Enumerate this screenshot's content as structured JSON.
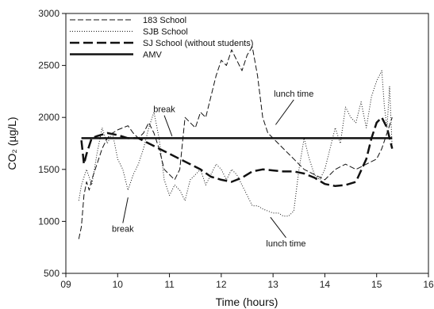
{
  "chart_data": {
    "type": "line",
    "xlabel": "Time (hours)",
    "ylabel": "CO₂ (µg/L)",
    "xlim": [
      9,
      16
    ],
    "ylim": [
      500,
      3000
    ],
    "xticks": [
      9,
      10,
      11,
      12,
      13,
      14,
      15,
      16
    ],
    "yticks": [
      500,
      1000,
      1500,
      2000,
      2500,
      3000
    ],
    "xtick_labels": [
      "09",
      "10",
      "11",
      "12",
      "13",
      "14",
      "15",
      "16"
    ],
    "ytick_labels": [
      "500",
      "1000",
      "1500",
      "2000",
      "2500",
      "3000"
    ],
    "grid": false,
    "legend": "top-left",
    "series": [
      {
        "name": "183 School",
        "style": "dashed",
        "points": [
          [
            9.25,
            830
          ],
          [
            9.3,
            950
          ],
          [
            9.35,
            1250
          ],
          [
            9.4,
            1380
          ],
          [
            9.45,
            1300
          ],
          [
            9.5,
            1400
          ],
          [
            9.6,
            1550
          ],
          [
            9.7,
            1700
          ],
          [
            9.8,
            1800
          ],
          [
            9.9,
            1850
          ],
          [
            10.0,
            1880
          ],
          [
            10.1,
            1900
          ],
          [
            10.2,
            1920
          ],
          [
            10.3,
            1850
          ],
          [
            10.4,
            1800
          ],
          [
            10.5,
            1850
          ],
          [
            10.6,
            1950
          ],
          [
            10.7,
            1850
          ],
          [
            10.8,
            1700
          ],
          [
            10.9,
            1500
          ],
          [
            11.0,
            1450
          ],
          [
            11.1,
            1400
          ],
          [
            11.2,
            1500
          ],
          [
            11.3,
            2000
          ],
          [
            11.4,
            1950
          ],
          [
            11.5,
            1900
          ],
          [
            11.6,
            2050
          ],
          [
            11.7,
            2000
          ],
          [
            11.8,
            2200
          ],
          [
            11.9,
            2400
          ],
          [
            12.0,
            2550
          ],
          [
            12.1,
            2500
          ],
          [
            12.2,
            2650
          ],
          [
            12.3,
            2550
          ],
          [
            12.4,
            2450
          ],
          [
            12.5,
            2600
          ],
          [
            12.6,
            2680
          ],
          [
            12.7,
            2400
          ],
          [
            12.8,
            2000
          ],
          [
            12.9,
            1850
          ],
          [
            13.0,
            1800
          ],
          [
            13.2,
            1700
          ],
          [
            13.4,
            1600
          ],
          [
            13.6,
            1500
          ],
          [
            13.8,
            1450
          ],
          [
            14.0,
            1400
          ],
          [
            14.2,
            1500
          ],
          [
            14.4,
            1550
          ],
          [
            14.6,
            1500
          ],
          [
            14.8,
            1550
          ],
          [
            15.0,
            1600
          ],
          [
            15.1,
            1700
          ],
          [
            15.2,
            1850
          ],
          [
            15.3,
            2000
          ]
        ]
      },
      {
        "name": "SJB School",
        "style": "dotted",
        "points": [
          [
            9.25,
            1200
          ],
          [
            9.3,
            1350
          ],
          [
            9.4,
            1500
          ],
          [
            9.5,
            1350
          ],
          [
            9.6,
            1650
          ],
          [
            9.7,
            1900
          ],
          [
            9.8,
            1750
          ],
          [
            9.9,
            1850
          ],
          [
            10.0,
            1600
          ],
          [
            10.1,
            1500
          ],
          [
            10.2,
            1300
          ],
          [
            10.3,
            1450
          ],
          [
            10.4,
            1550
          ],
          [
            10.5,
            1700
          ],
          [
            10.6,
            1900
          ],
          [
            10.7,
            2050
          ],
          [
            10.8,
            1800
          ],
          [
            10.9,
            1400
          ],
          [
            11.0,
            1250
          ],
          [
            11.1,
            1350
          ],
          [
            11.2,
            1300
          ],
          [
            11.3,
            1200
          ],
          [
            11.4,
            1400
          ],
          [
            11.5,
            1450
          ],
          [
            11.6,
            1500
          ],
          [
            11.7,
            1350
          ],
          [
            11.8,
            1450
          ],
          [
            11.9,
            1550
          ],
          [
            12.0,
            1500
          ],
          [
            12.1,
            1400
          ],
          [
            12.2,
            1500
          ],
          [
            12.3,
            1450
          ],
          [
            12.4,
            1350
          ],
          [
            12.5,
            1250
          ],
          [
            12.6,
            1150
          ],
          [
            12.7,
            1150
          ],
          [
            12.8,
            1120
          ],
          [
            12.9,
            1100
          ],
          [
            13.0,
            1080
          ],
          [
            13.1,
            1080
          ],
          [
            13.2,
            1050
          ],
          [
            13.3,
            1050
          ],
          [
            13.4,
            1100
          ],
          [
            13.5,
            1500
          ],
          [
            13.6,
            1800
          ],
          [
            13.7,
            1600
          ],
          [
            13.8,
            1450
          ],
          [
            13.9,
            1400
          ],
          [
            14.0,
            1500
          ],
          [
            14.1,
            1700
          ],
          [
            14.2,
            1900
          ],
          [
            14.3,
            1750
          ],
          [
            14.4,
            2100
          ],
          [
            14.5,
            2000
          ],
          [
            14.6,
            1950
          ],
          [
            14.7,
            2150
          ],
          [
            14.8,
            1900
          ],
          [
            14.9,
            2200
          ],
          [
            15.0,
            2350
          ],
          [
            15.1,
            2450
          ],
          [
            15.15,
            2100
          ],
          [
            15.2,
            1900
          ],
          [
            15.25,
            2300
          ],
          [
            15.3,
            1700
          ]
        ]
      },
      {
        "name": "SJ School (without students)",
        "style": "longdash",
        "points": [
          [
            9.3,
            1780
          ],
          [
            9.35,
            1550
          ],
          [
            9.4,
            1650
          ],
          [
            9.5,
            1800
          ],
          [
            9.6,
            1820
          ],
          [
            9.8,
            1850
          ],
          [
            10.0,
            1830
          ],
          [
            10.2,
            1800
          ],
          [
            10.4,
            1800
          ],
          [
            10.6,
            1750
          ],
          [
            10.8,
            1700
          ],
          [
            11.0,
            1650
          ],
          [
            11.2,
            1600
          ],
          [
            11.4,
            1550
          ],
          [
            11.6,
            1500
          ],
          [
            11.8,
            1430
          ],
          [
            12.0,
            1400
          ],
          [
            12.2,
            1380
          ],
          [
            12.4,
            1420
          ],
          [
            12.6,
            1480
          ],
          [
            12.8,
            1500
          ],
          [
            13.0,
            1490
          ],
          [
            13.2,
            1480
          ],
          [
            13.4,
            1480
          ],
          [
            13.6,
            1460
          ],
          [
            13.8,
            1420
          ],
          [
            14.0,
            1360
          ],
          [
            14.2,
            1340
          ],
          [
            14.4,
            1350
          ],
          [
            14.6,
            1380
          ],
          [
            14.8,
            1600
          ],
          [
            14.9,
            1800
          ],
          [
            15.0,
            1950
          ],
          [
            15.1,
            2000
          ],
          [
            15.2,
            1900
          ],
          [
            15.3,
            1700
          ]
        ]
      },
      {
        "name": "AMV",
        "style": "solid",
        "points": [
          [
            9.3,
            1800
          ],
          [
            15.3,
            1800
          ]
        ]
      }
    ],
    "annotations": [
      {
        "text": "break",
        "pos": [
          10.9,
          2050
        ],
        "arrow_to": [
          11.05,
          1820
        ]
      },
      {
        "text": "break",
        "pos": [
          10.1,
          900
        ],
        "arrow_to": [
          10.2,
          1230
        ]
      },
      {
        "text": "lunch time",
        "pos": [
          13.4,
          2200
        ],
        "arrow_to": [
          13.05,
          1930
        ]
      },
      {
        "text": "lunch time",
        "pos": [
          13.25,
          760
        ],
        "arrow_to": [
          12.95,
          1040
        ]
      }
    ]
  }
}
